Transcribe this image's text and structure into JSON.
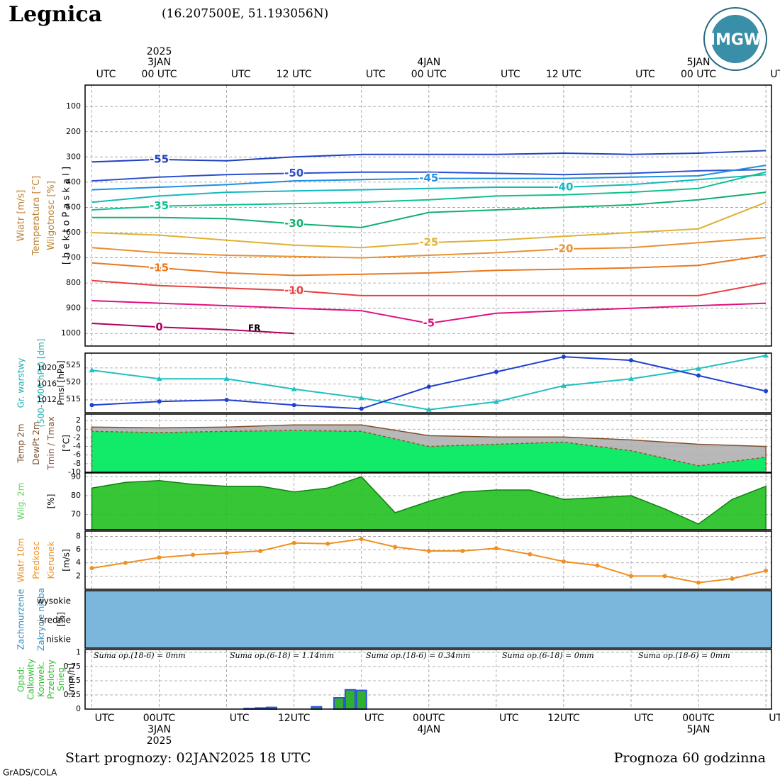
{
  "header": {
    "title": "Legnica",
    "coords": "(16.207500E, 51.193056N)",
    "logo": "IMGW"
  },
  "footer": {
    "start": "Start prognozy: 02JAN2025 18 UTC",
    "range": "Prognoza 60 godzinna",
    "credit": "GrADS/COLA"
  },
  "time_axis": {
    "xlim": [
      -0.6,
      60.5
    ],
    "xticks": [
      {
        "value": 0,
        "label": "UTC"
      },
      {
        "value": 6,
        "label": "00 UTC"
      },
      {
        "value": 12,
        "label": "UTC"
      },
      {
        "value": 18,
        "label": "12 UTC"
      },
      {
        "value": 24,
        "label": "UTC"
      },
      {
        "value": 30,
        "label": "00 UTC"
      },
      {
        "value": 36,
        "label": "UTC"
      },
      {
        "value": 42,
        "label": "12 UTC"
      },
      {
        "value": 48,
        "label": "UTC"
      },
      {
        "value": 54,
        "label": "00 UTC"
      },
      {
        "value": 60,
        "label": "UTC"
      }
    ],
    "bottom_xticks": [
      {
        "value": 0,
        "label": "UTC"
      },
      {
        "value": 6,
        "label": "00UTC"
      },
      {
        "value": 12,
        "label": "UTC"
      },
      {
        "value": 18,
        "label": "12UTC"
      },
      {
        "value": 24,
        "label": "UTC"
      },
      {
        "value": 30,
        "label": "00UTC"
      },
      {
        "value": 36,
        "label": "UTC"
      },
      {
        "value": 42,
        "label": "12UTC"
      },
      {
        "value": 48,
        "label": "UTC"
      },
      {
        "value": 54,
        "label": "00UTC"
      },
      {
        "value": 60,
        "label": "UTC"
      }
    ],
    "dates": [
      {
        "value": 6,
        "label": "3JAN",
        "year": "2025"
      },
      {
        "value": 30,
        "label": "4JAN"
      },
      {
        "value": 54,
        "label": "5JAN"
      }
    ]
  },
  "chart_data": [
    {
      "type": "line",
      "ylabels": [
        "Wiatr [m/s]",
        "Temperatura [°C]",
        "Wilgotnosc [%]",
        "[ h e k t o P a s k a l ]"
      ],
      "ylim": [
        1050,
        15
      ],
      "yticks": [
        100,
        200,
        300,
        400,
        500,
        600,
        700,
        800,
        900,
        1000
      ],
      "grid": true,
      "annotation": "FR",
      "x": [
        0,
        6,
        12,
        18,
        24,
        30,
        36,
        42,
        48,
        54,
        60
      ],
      "series": [
        {
          "name": "-55",
          "color": "#2040c0",
          "values": [
            320,
            310,
            315,
            300,
            290,
            290,
            290,
            285,
            290,
            285,
            275
          ]
        },
        {
          "name": "-50",
          "color": "#2c50d0",
          "values": [
            395,
            380,
            370,
            365,
            360,
            360,
            365,
            370,
            365,
            355,
            350
          ]
        },
        {
          "name": "-45",
          "color": "#1e90e0",
          "values": [
            430,
            420,
            410,
            395,
            390,
            385,
            385,
            385,
            380,
            375,
            333
          ]
        },
        {
          "name": "-40",
          "color": "#14b8c0",
          "values": [
            480,
            455,
            440,
            435,
            430,
            425,
            420,
            420,
            410,
            390,
            370
          ]
        },
        {
          "name": "-35",
          "color": "#10c090",
          "values": [
            510,
            495,
            490,
            485,
            480,
            470,
            455,
            450,
            440,
            425,
            360
          ]
        },
        {
          "name": "-30",
          "color": "#10b070",
          "values": [
            540,
            540,
            545,
            565,
            580,
            520,
            510,
            500,
            490,
            470,
            440
          ]
        },
        {
          "name": "-25",
          "color": "#e0b030",
          "values": [
            600,
            610,
            630,
            650,
            660,
            640,
            630,
            615,
            600,
            585,
            480
          ]
        },
        {
          "name": "-20",
          "color": "#e89030",
          "values": [
            660,
            680,
            690,
            695,
            700,
            690,
            680,
            665,
            660,
            640,
            620
          ]
        },
        {
          "name": "-15",
          "color": "#e87820",
          "values": [
            720,
            740,
            760,
            770,
            765,
            760,
            750,
            745,
            740,
            730,
            690
          ]
        },
        {
          "name": "-10",
          "color": "#e84040",
          "values": [
            790,
            810,
            820,
            830,
            850,
            850,
            850,
            850,
            850,
            850,
            800
          ]
        },
        {
          "name": "-5",
          "color": "#e01080",
          "values": [
            870,
            880,
            890,
            900,
            910,
            960,
            920,
            910,
            900,
            890,
            880
          ]
        },
        {
          "name": "0",
          "color": "#b00060",
          "values": [
            960,
            975,
            985,
            1000,
            null,
            null,
            null,
            null,
            null,
            null,
            null
          ]
        }
      ]
    },
    {
      "type": "line",
      "ylabels": [
        "Gr. warstwy",
        "(500-1000 hPa) [dm]",
        "Pmsl [hPa]"
      ],
      "ylim": [
        511.1,
        528.5
      ],
      "yticks": [
        515,
        520,
        525
      ],
      "y2lim": [
        1008.8,
        1023.7
      ],
      "y2ticks": [
        1012,
        1016,
        1020
      ],
      "x": [
        0,
        6,
        12,
        18,
        24,
        30,
        36,
        42,
        48,
        54,
        60
      ],
      "series": [
        {
          "name": "Gr. warstwy",
          "color": "#20c0c0",
          "values": [
            523.5,
            521,
            521,
            518,
            515.4,
            512,
            514.3,
            519,
            521,
            524,
            527.8
          ]
        },
        {
          "name": "Pmsl",
          "color": "#2040d0",
          "axis": "y2",
          "values": [
            1010.7,
            1011.6,
            1012,
            1010.7,
            1009.8,
            1015.3,
            1019,
            1022.8,
            1021.9,
            1018.1,
            1014.2
          ]
        }
      ]
    },
    {
      "type": "area",
      "ylabels": [
        "Temp 2m",
        "DewPt 2m",
        "Tmin / Tmax",
        "[°C]"
      ],
      "ylim": [
        -10,
        3.5
      ],
      "yticks": [
        2,
        0,
        -2,
        -4,
        -6,
        -8,
        -10
      ],
      "grid": true,
      "x": [
        0,
        6,
        12,
        18,
        24,
        30,
        36,
        42,
        48,
        54,
        60
      ],
      "series": [
        {
          "name": "Temp 2m",
          "color": "#b0b0b0",
          "line": "#805030",
          "values": [
            0.5,
            0.3,
            0.5,
            1,
            1,
            -1.5,
            -1.8,
            -1.8,
            -2.5,
            -3.5,
            -4
          ]
        },
        {
          "name": "DewPt 2m",
          "color": "#00f060",
          "line": "#a05030",
          "values": [
            -0.5,
            -0.8,
            -0.5,
            -0.3,
            -0.5,
            -4,
            -3.5,
            -3,
            -5,
            -8.5,
            -6.5
          ]
        }
      ]
    },
    {
      "type": "area",
      "ylabels": [
        "Wilg. 2m",
        "[%]"
      ],
      "ylim": [
        62,
        92
      ],
      "yticks": [
        70,
        80,
        90
      ],
      "grid": true,
      "x": [
        0,
        3,
        6,
        9,
        12,
        15,
        18,
        21,
        24,
        27,
        30,
        33,
        36,
        39,
        42,
        45,
        48,
        51,
        54,
        57,
        60
      ],
      "series": [
        {
          "name": "Wilg. 2m",
          "color": "#20c020",
          "line": "#108010",
          "values": [
            84,
            87,
            88,
            86,
            85,
            85,
            82,
            84,
            90,
            71,
            77,
            82,
            83,
            83,
            78,
            79,
            80,
            73,
            65,
            78,
            85
          ]
        }
      ]
    },
    {
      "type": "line",
      "ylabels": [
        "Wiatr 10m",
        "Predkosc",
        "Kierunek",
        "[m/s]"
      ],
      "ylim": [
        0,
        8.8
      ],
      "yticks": [
        2,
        4,
        6,
        8
      ],
      "grid": true,
      "x": [
        0,
        3,
        6,
        9,
        12,
        15,
        18,
        21,
        24,
        27,
        30,
        33,
        36,
        39,
        42,
        45,
        48,
        51,
        54,
        57,
        60
      ],
      "series": [
        {
          "name": "Predkosc",
          "color": "#f09020",
          "values": [
            3.2,
            4,
            4.8,
            5.2,
            5.5,
            5.8,
            7,
            6.9,
            7.6,
            6.4,
            5.8,
            5.8,
            6.2,
            5.3,
            4.2,
            3.6,
            2,
            2,
            1,
            1.6,
            2.8
          ]
        }
      ]
    },
    {
      "type": "cloud",
      "ylabels": [
        "Zachmurzenie",
        "Zakrycie nieba",
        "[%]"
      ],
      "categories": [
        "wysokie",
        "srednie",
        "niskie"
      ]
    },
    {
      "type": "bar",
      "ylabels": [
        "Opad:",
        "Calkowity",
        "Konwek.",
        "Przelotny",
        "Snieg",
        "[mm/h]"
      ],
      "ylim": [
        0,
        1.05
      ],
      "yticks": [
        0,
        0.25,
        0.5,
        0.75,
        1
      ],
      "grid": true,
      "x": [
        14,
        15,
        16,
        20,
        22,
        23,
        24
      ],
      "values": [
        0.01,
        0.02,
        0.03,
        0.04,
        0.2,
        0.34,
        0.33
      ],
      "color": "#30b030",
      "annotations": [
        "Suma op.(18-6) = 0mm",
        "Suma op.(6-18) = 1.14mm",
        "Suma op.(18-6) = 0.34mm",
        "Suma op.(6-18) = 0mm",
        "Suma op.(18-6) = 0mm"
      ]
    }
  ]
}
